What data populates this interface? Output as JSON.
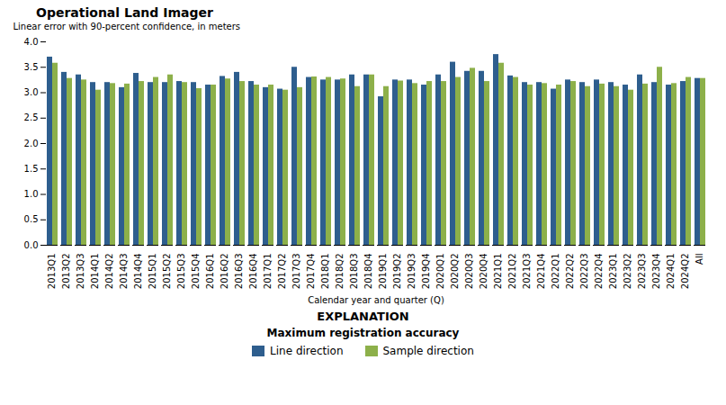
{
  "chart_data": {
    "type": "bar",
    "title": "Operational Land Imager",
    "xlabel": "Calendar year and quarter (Q)",
    "ylabel": "Linear error with 90-percent confidence, in meters",
    "ylim": [
      0,
      4
    ],
    "yticks": [
      {
        "value": 0,
        "label": "0.0"
      },
      0.5,
      {
        "value": 1.0,
        "label": "1.0"
      },
      1.5,
      {
        "value": 2.0,
        "label": "2.0"
      },
      2.5,
      {
        "value": 3.0,
        "label": "3.0"
      },
      3.5,
      {
        "value": 4.0,
        "label": "4.0"
      }
    ],
    "categories": [
      "2013Q1",
      "2013Q2",
      "2013Q3",
      "2014Q1",
      "2014Q2",
      "2014Q3",
      "2014Q4",
      "2015Q1",
      "2015Q2",
      "2015Q3",
      "2015Q4",
      "2016Q1",
      "2016Q2",
      "2016Q3",
      "2016Q4",
      "2017Q1",
      "2017Q2",
      "2017Q3",
      "2017Q4",
      "2018Q1",
      "2018Q2",
      "2018Q3",
      "2018Q4",
      "2019Q1",
      "2019Q2",
      "2019Q3",
      "2019Q4",
      "2020Q1",
      "2020Q2",
      "2020Q3",
      "2020Q4",
      "2021Q1",
      "2021Q2",
      "2021Q3",
      "2021Q4",
      "2022Q1",
      "2022Q2",
      "2022Q3",
      "2022Q4",
      "2023Q1",
      "2023Q2",
      "2023Q3",
      "2023Q4",
      "2024Q1",
      "2024Q2",
      "All"
    ],
    "series": [
      {
        "name": "Line direction",
        "color": "#2E5E8E",
        "values": [
          3.7,
          3.4,
          3.35,
          3.2,
          3.2,
          3.1,
          3.38,
          3.2,
          3.2,
          3.22,
          3.2,
          3.15,
          3.32,
          3.4,
          3.22,
          3.1,
          3.07,
          3.5,
          3.3,
          3.25,
          3.25,
          3.35,
          3.35,
          2.92,
          3.25,
          3.25,
          3.15,
          3.35,
          3.6,
          3.42,
          3.42,
          3.75,
          3.33,
          3.2,
          3.2,
          3.07,
          3.25,
          3.2,
          3.25,
          3.2,
          3.15,
          3.35,
          3.2,
          3.15,
          3.22,
          3.28
        ]
      },
      {
        "name": "Sample direction",
        "color": "#8DB04A",
        "values": [
          3.58,
          3.28,
          3.25,
          3.05,
          3.18,
          3.17,
          3.22,
          3.3,
          3.35,
          3.2,
          3.08,
          3.15,
          3.27,
          3.22,
          3.15,
          3.15,
          3.05,
          3.1,
          3.31,
          3.3,
          3.27,
          3.12,
          3.35,
          3.12,
          3.23,
          3.18,
          3.22,
          3.22,
          3.3,
          3.48,
          3.22,
          3.58,
          3.3,
          3.15,
          3.18,
          3.15,
          3.22,
          3.12,
          3.17,
          3.12,
          3.05,
          3.17,
          3.5,
          3.18,
          3.3,
          3.28
        ]
      }
    ],
    "annotations": [
      "EXPLANATION",
      "Maximum registration accuracy"
    ],
    "legend": "bottom",
    "grid": false
  }
}
